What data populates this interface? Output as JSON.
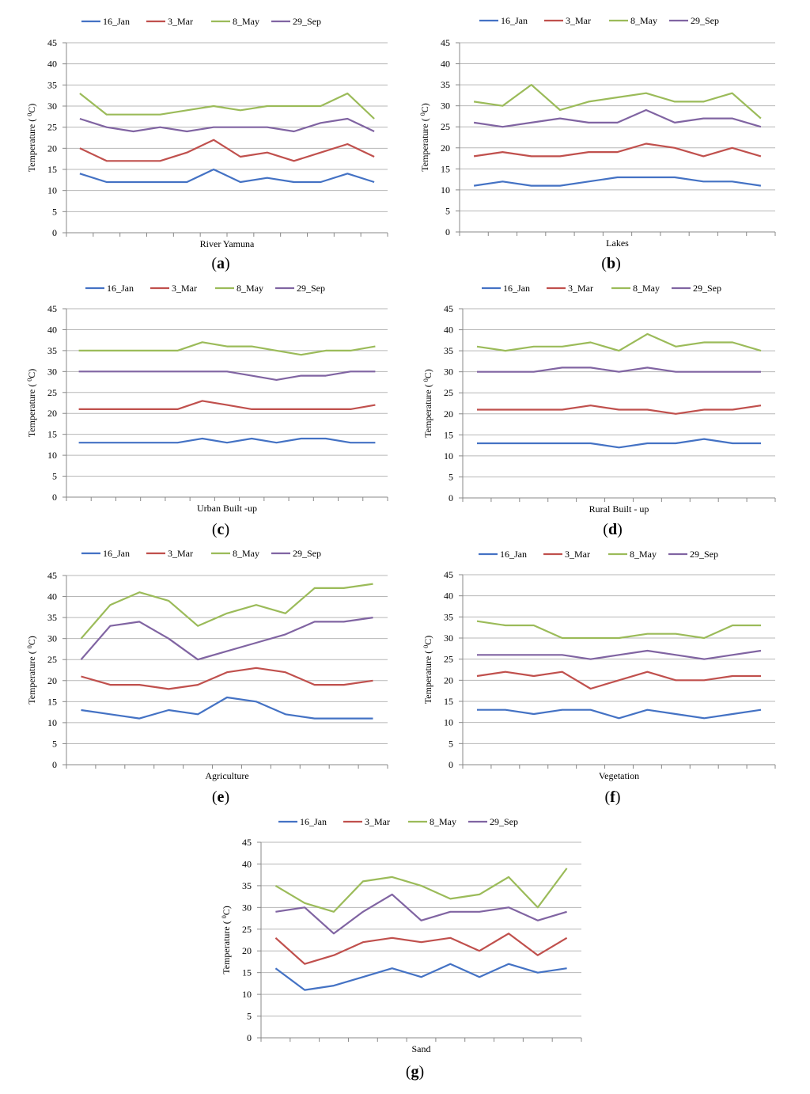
{
  "chart_data": [
    {
      "panel": "(a)",
      "panel_letter": "a",
      "type": "line",
      "xlabel": "River Yamuna",
      "ylabel": "Temperature ( 0C)",
      "ylim": [
        0,
        45
      ],
      "yticks": [
        0,
        5,
        10,
        15,
        20,
        25,
        30,
        35,
        40,
        45
      ],
      "grid": true,
      "legend": "top",
      "series": [
        {
          "name": "16_Jan",
          "color": "#4472C4",
          "values": [
            14,
            12,
            12,
            12,
            12,
            15,
            12,
            13,
            12,
            12,
            14,
            12
          ]
        },
        {
          "name": "3_Mar",
          "color": "#C0504D",
          "values": [
            20,
            17,
            17,
            17,
            19,
            22,
            18,
            19,
            17,
            19,
            21,
            18
          ]
        },
        {
          "name": "8_May",
          "color": "#9BBB59",
          "values": [
            33,
            28,
            28,
            28,
            29,
            30,
            29,
            30,
            30,
            30,
            33,
            27
          ]
        },
        {
          "name": "29_Sep",
          "color": "#8064A2",
          "values": [
            27,
            25,
            24,
            25,
            24,
            25,
            25,
            25,
            24,
            26,
            27,
            24
          ]
        }
      ]
    },
    {
      "panel": "(b)",
      "panel_letter": "b",
      "type": "line",
      "xlabel": "Lakes",
      "ylabel": "Temperature ( 0C)",
      "ylim": [
        0,
        45
      ],
      "yticks": [
        0,
        5,
        10,
        15,
        20,
        25,
        30,
        35,
        40,
        45
      ],
      "grid": true,
      "legend": "top",
      "series": [
        {
          "name": "16_Jan",
          "color": "#4472C4",
          "values": [
            11,
            12,
            11,
            11,
            12,
            13,
            13,
            13,
            12,
            12,
            11
          ]
        },
        {
          "name": "3_Mar",
          "color": "#C0504D",
          "values": [
            18,
            19,
            18,
            18,
            19,
            19,
            21,
            20,
            18,
            20,
            18
          ]
        },
        {
          "name": "8_May",
          "color": "#9BBB59",
          "values": [
            31,
            30,
            35,
            29,
            31,
            32,
            33,
            31,
            31,
            33,
            27
          ]
        },
        {
          "name": "29_Sep",
          "color": "#8064A2",
          "values": [
            26,
            25,
            26,
            27,
            26,
            26,
            29,
            26,
            27,
            27,
            25
          ]
        }
      ]
    },
    {
      "panel": "(c)",
      "panel_letter": "c",
      "type": "line",
      "xlabel": "Urban Built -up",
      "ylabel": "Temperature ( 0C)",
      "ylim": [
        0,
        45
      ],
      "yticks": [
        0,
        5,
        10,
        15,
        20,
        25,
        30,
        35,
        40,
        45
      ],
      "grid": true,
      "legend": "top",
      "series": [
        {
          "name": "16_Jan",
          "color": "#4472C4",
          "values": [
            13,
            13,
            13,
            13,
            13,
            14,
            13,
            14,
            13,
            14,
            14,
            13,
            13
          ]
        },
        {
          "name": "3_Mar",
          "color": "#C0504D",
          "values": [
            21,
            21,
            21,
            21,
            21,
            23,
            22,
            21,
            21,
            21,
            21,
            21,
            22
          ]
        },
        {
          "name": "8_May",
          "color": "#9BBB59",
          "values": [
            35,
            35,
            35,
            35,
            35,
            37,
            36,
            36,
            35,
            34,
            35,
            35,
            36
          ]
        },
        {
          "name": "29_Sep",
          "color": "#8064A2",
          "values": [
            30,
            30,
            30,
            30,
            30,
            30,
            30,
            29,
            28,
            29,
            29,
            30,
            30
          ]
        }
      ]
    },
    {
      "panel": "(d)",
      "panel_letter": "d",
      "type": "line",
      "xlabel": "Rural Built - up",
      "ylabel": "Temperature ( 0C)",
      "ylim": [
        0,
        45
      ],
      "yticks": [
        0,
        5,
        10,
        15,
        20,
        25,
        30,
        35,
        40,
        45
      ],
      "grid": true,
      "legend": "top",
      "series": [
        {
          "name": "16_Jan",
          "color": "#4472C4",
          "values": [
            13,
            13,
            13,
            13,
            13,
            12,
            13,
            13,
            14,
            13,
            13
          ]
        },
        {
          "name": "3_Mar",
          "color": "#C0504D",
          "values": [
            21,
            21,
            21,
            21,
            22,
            21,
            21,
            20,
            21,
            21,
            22
          ]
        },
        {
          "name": "8_May",
          "color": "#9BBB59",
          "values": [
            36,
            35,
            36,
            36,
            37,
            35,
            39,
            36,
            37,
            37,
            35
          ]
        },
        {
          "name": "29_Sep",
          "color": "#8064A2",
          "values": [
            30,
            30,
            30,
            31,
            31,
            30,
            31,
            30,
            30,
            30,
            30
          ]
        }
      ]
    },
    {
      "panel": "(e)",
      "panel_letter": "e",
      "type": "line",
      "xlabel": "Agriculture",
      "ylabel": "Temperature ( 0C)",
      "ylim": [
        0,
        45
      ],
      "yticks": [
        0,
        5,
        10,
        15,
        20,
        25,
        30,
        35,
        40,
        45
      ],
      "grid": true,
      "legend": "top",
      "series": [
        {
          "name": "16_Jan",
          "color": "#4472C4",
          "values": [
            13,
            12,
            11,
            13,
            12,
            16,
            15,
            12,
            11,
            11,
            11
          ]
        },
        {
          "name": "3_Mar",
          "color": "#C0504D",
          "values": [
            21,
            19,
            19,
            18,
            19,
            22,
            23,
            22,
            19,
            19,
            20
          ]
        },
        {
          "name": "8_May",
          "color": "#9BBB59",
          "values": [
            30,
            38,
            41,
            39,
            33,
            36,
            38,
            36,
            42,
            42,
            43
          ]
        },
        {
          "name": "29_Sep",
          "color": "#8064A2",
          "values": [
            25,
            33,
            34,
            30,
            25,
            27,
            29,
            31,
            34,
            34,
            35
          ]
        }
      ]
    },
    {
      "panel": "(f)",
      "panel_letter": "f",
      "type": "line",
      "xlabel": "Vegetation",
      "ylabel": "Temperature ( 0C)",
      "ylim": [
        0,
        45
      ],
      "yticks": [
        0,
        5,
        10,
        15,
        20,
        25,
        30,
        35,
        40,
        45
      ],
      "grid": true,
      "legend": "top",
      "series": [
        {
          "name": "16_Jan",
          "color": "#4472C4",
          "values": [
            13,
            13,
            12,
            13,
            13,
            11,
            13,
            12,
            11,
            12,
            13
          ]
        },
        {
          "name": "3_Mar",
          "color": "#C0504D",
          "values": [
            21,
            22,
            21,
            22,
            18,
            20,
            22,
            20,
            20,
            21,
            21
          ]
        },
        {
          "name": "8_May",
          "color": "#9BBB59",
          "values": [
            34,
            33,
            33,
            30,
            30,
            30,
            31,
            31,
            30,
            33,
            33
          ]
        },
        {
          "name": "29_Sep",
          "color": "#8064A2",
          "values": [
            26,
            26,
            26,
            26,
            25,
            26,
            27,
            26,
            25,
            26,
            27
          ]
        }
      ]
    },
    {
      "panel": "(g)",
      "panel_letter": "g",
      "type": "line",
      "xlabel": "Sand",
      "ylabel": "Temperature ( 0C)",
      "ylim": [
        0,
        45
      ],
      "yticks": [
        0,
        5,
        10,
        15,
        20,
        25,
        30,
        35,
        40,
        45
      ],
      "grid": true,
      "legend": "top",
      "series": [
        {
          "name": "16_Jan",
          "color": "#4472C4",
          "values": [
            16,
            11,
            12,
            14,
            16,
            14,
            17,
            14,
            17,
            15,
            16
          ]
        },
        {
          "name": "3_Mar",
          "color": "#C0504D",
          "values": [
            23,
            17,
            19,
            22,
            23,
            22,
            23,
            20,
            24,
            19,
            23
          ]
        },
        {
          "name": "8_May",
          "color": "#9BBB59",
          "values": [
            35,
            31,
            29,
            36,
            37,
            35,
            32,
            33,
            37,
            30,
            39
          ]
        },
        {
          "name": "29_Sep",
          "color": "#8064A2",
          "values": [
            29,
            30,
            24,
            29,
            33,
            27,
            29,
            29,
            30,
            27,
            29
          ]
        }
      ]
    }
  ]
}
